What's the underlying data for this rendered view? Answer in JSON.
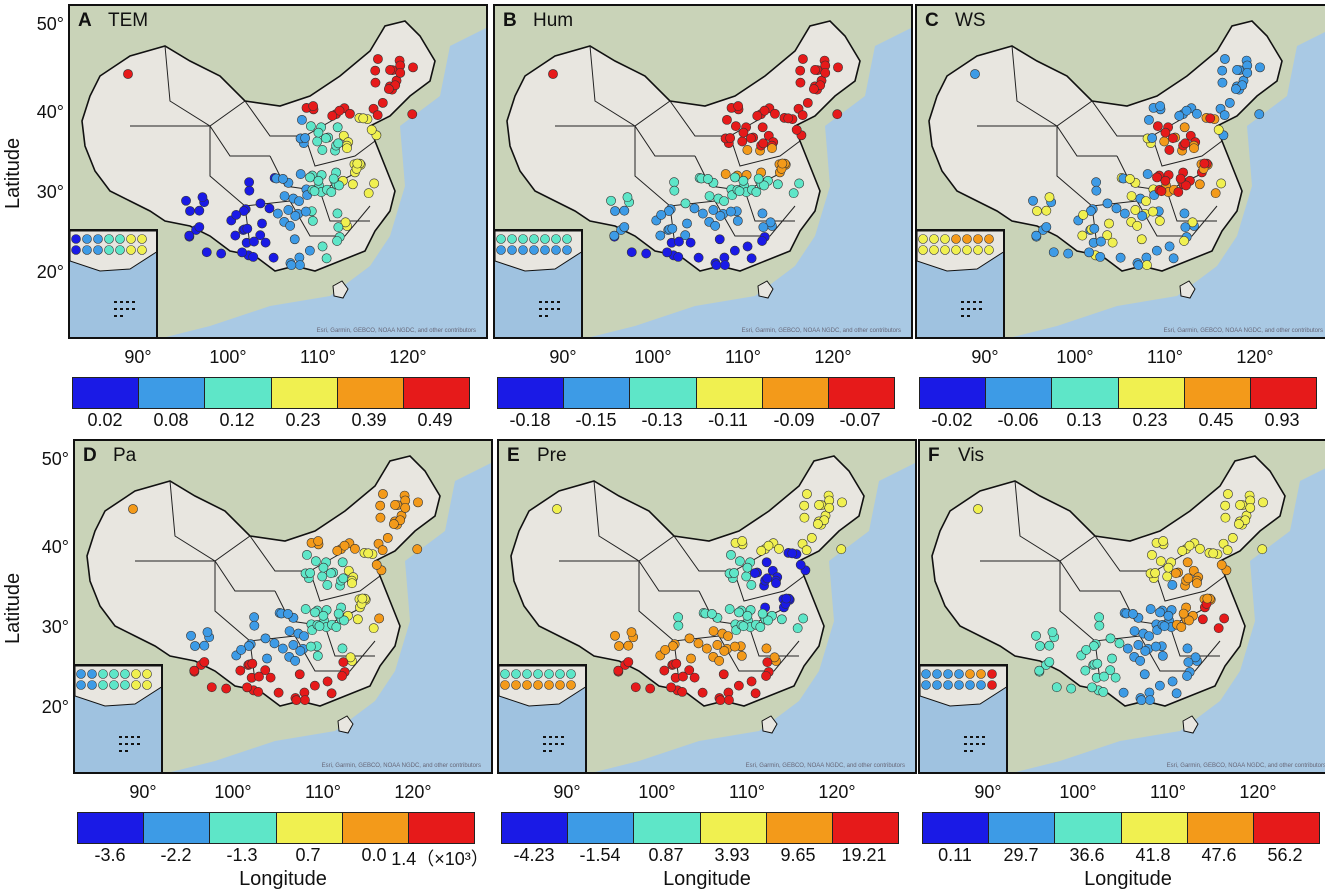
{
  "axes": {
    "ylabel": "Latitude",
    "xlabel": "Longitude",
    "lat_ticks": [
      "50°",
      "40°",
      "30°",
      "20°"
    ],
    "lon_ticks": [
      "90°",
      "100°",
      "110°",
      "120°"
    ],
    "basemap_credit": "Esri, Garmin, GEBCO, NOAA NGDC, and other contributors"
  },
  "legend_colors": [
    "#1a1ae6",
    "#3d9be6",
    "#5ee6c8",
    "#f0f050",
    "#f39a1a",
    "#e61a1a"
  ],
  "panels": [
    {
      "letter": "A",
      "name": "TEM",
      "legend": [
        "0.02",
        "0.08",
        "0.12",
        "0.23",
        "0.39",
        "0.49"
      ]
    },
    {
      "letter": "B",
      "name": "Hum",
      "legend": [
        "-0.18",
        "-0.15",
        "-0.13",
        "-0.11",
        "-0.09",
        "-0.07"
      ]
    },
    {
      "letter": "C",
      "name": "WS",
      "legend": [
        "-0.02",
        "-0.06",
        "0.13",
        "0.23",
        "0.45",
        "0.93"
      ]
    },
    {
      "letter": "D",
      "name": "Pa",
      "legend": [
        "-3.6",
        "-2.2",
        "-1.3",
        "0.7",
        "0.0",
        "1.4（×10³）"
      ]
    },
    {
      "letter": "E",
      "name": "Pre",
      "legend": [
        "-4.23",
        "-1.54",
        "0.87",
        "3.93",
        "9.65",
        "19.21"
      ]
    },
    {
      "letter": "F",
      "name": "Vis",
      "legend": [
        "0.11",
        "29.7",
        "36.6",
        "41.8",
        "47.6",
        "56.2"
      ]
    }
  ]
}
